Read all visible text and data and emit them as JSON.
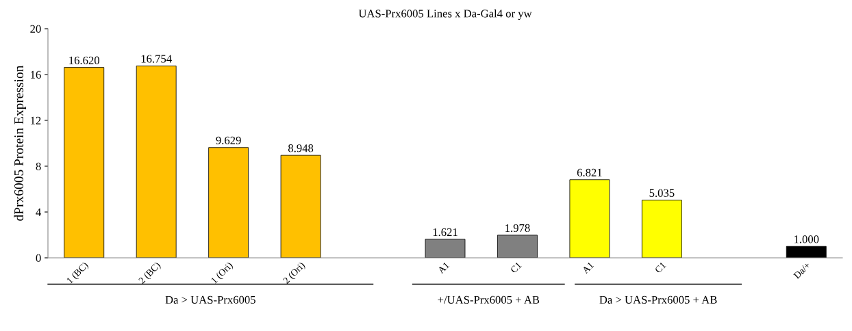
{
  "chart_data": {
    "type": "bar",
    "title": "UAS-Prx6005 Lines x Da-Gal4 or yw",
    "ylabel": "dPrx6005 Protein Expression",
    "categories": [
      "1 (BC)",
      "2 (BC)",
      "1 (Ori)",
      "2 (Ori)",
      null,
      "A1",
      "C1",
      "A1",
      "C1",
      null,
      "Da/+"
    ],
    "values": [
      16.62,
      16.754,
      9.629,
      8.948,
      null,
      1.621,
      1.978,
      6.821,
      5.035,
      null,
      1.0
    ],
    "value_labels": [
      "16.620",
      "16.754",
      "9.629",
      "8.948",
      null,
      "1.621",
      "1.978",
      "6.821",
      "5.035",
      null,
      "1.000"
    ],
    "colors": [
      "#ffc000",
      "#ffc000",
      "#ffc000",
      "#ffc000",
      null,
      "#808080",
      "#808080",
      "#ffff00",
      "#ffff00",
      null,
      "#000000"
    ],
    "ylim": [
      0,
      20
    ],
    "yticks": [
      0,
      4,
      8,
      12,
      16,
      20
    ],
    "grid": false,
    "annotations": [
      "Da > UAS-Prx6005",
      "+/UAS-Prx6005 + AB",
      "Da > UAS-Prx6005 + AB"
    ]
  }
}
